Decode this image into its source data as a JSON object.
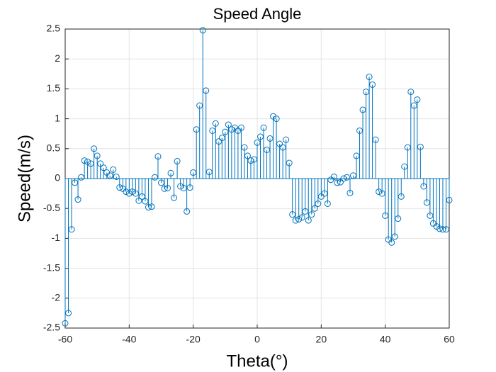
{
  "chart_data": {
    "type": "stem",
    "title": "Speed Angle",
    "x_label": "Theta(°)",
    "y_label": "Speed(m/s)",
    "color": "#0072bd",
    "grid": true,
    "xlim": [
      -60,
      60
    ],
    "xticks": [
      -60,
      -40,
      -20,
      0,
      20,
      40,
      60
    ],
    "ylim": [
      -2.5,
      2.5
    ],
    "yticks": [
      -2.5,
      -2,
      -1.5,
      -1,
      -0.5,
      0,
      0.5,
      1,
      1.5,
      2,
      2.5
    ],
    "x": [
      -60,
      -59,
      -58,
      -57,
      -56,
      -55,
      -54,
      -53,
      -52,
      -51,
      -50,
      -49,
      -48,
      -47,
      -46,
      -45,
      -44,
      -43,
      -42,
      -41,
      -40,
      -39,
      -38,
      -37,
      -36,
      -35,
      -34,
      -33,
      -32,
      -31,
      -30,
      -29,
      -28,
      -27,
      -26,
      -25,
      -24,
      -23,
      -22,
      -21,
      -20,
      -19,
      -18,
      -17,
      -16,
      -15,
      -14,
      -13,
      -12,
      -11,
      -10,
      -9,
      -8,
      -7,
      -6,
      -5,
      -4,
      -3,
      -2,
      -1,
      0,
      1,
      2,
      3,
      4,
      5,
      6,
      7,
      8,
      9,
      10,
      11,
      12,
      13,
      14,
      15,
      16,
      17,
      18,
      19,
      20,
      21,
      22,
      23,
      24,
      25,
      26,
      27,
      28,
      29,
      30,
      31,
      32,
      33,
      34,
      35,
      36,
      37,
      38,
      39,
      40,
      41,
      42,
      43,
      44,
      45,
      46,
      47,
      48,
      49,
      50,
      51,
      52,
      53,
      54,
      55,
      56,
      57,
      58,
      59,
      60
    ],
    "values": [
      -2.42,
      -2.25,
      -0.85,
      -0.07,
      -0.35,
      0.02,
      0.3,
      0.28,
      0.25,
      0.5,
      0.38,
      0.25,
      0.18,
      0.1,
      0.05,
      0.15,
      0.03,
      -0.15,
      -0.17,
      -0.22,
      -0.25,
      -0.22,
      -0.25,
      -0.37,
      -0.3,
      -0.38,
      -0.48,
      -0.47,
      0.02,
      0.37,
      -0.07,
      -0.17,
      -0.16,
      0.09,
      -0.32,
      0.29,
      -0.13,
      -0.16,
      -0.55,
      -0.15,
      0.1,
      0.82,
      1.22,
      2.48,
      1.47,
      0.11,
      0.8,
      0.92,
      0.62,
      0.68,
      0.78,
      0.9,
      0.82,
      0.85,
      0.8,
      0.85,
      0.52,
      0.38,
      0.3,
      0.32,
      0.6,
      0.7,
      0.85,
      0.48,
      0.67,
      1.04,
      1.0,
      0.58,
      0.52,
      0.65,
      0.26,
      -0.6,
      -0.7,
      -0.68,
      -0.65,
      -0.55,
      -0.7,
      -0.6,
      -0.5,
      -0.42,
      -0.3,
      -0.25,
      -0.42,
      -0.02,
      0.03,
      -0.07,
      -0.06,
      0.0,
      0.02,
      -0.24,
      0.05,
      0.38,
      0.8,
      1.15,
      1.45,
      1.7,
      1.57,
      0.65,
      -0.22,
      -0.25,
      -0.62,
      -1.02,
      -1.07,
      -0.97,
      -0.67,
      -0.3,
      0.2,
      0.52,
      1.45,
      1.22,
      1.32,
      0.53,
      -0.13,
      -0.4,
      -0.62,
      -0.75,
      -0.8,
      -0.84,
      -0.85,
      -0.85,
      -0.36
    ]
  }
}
